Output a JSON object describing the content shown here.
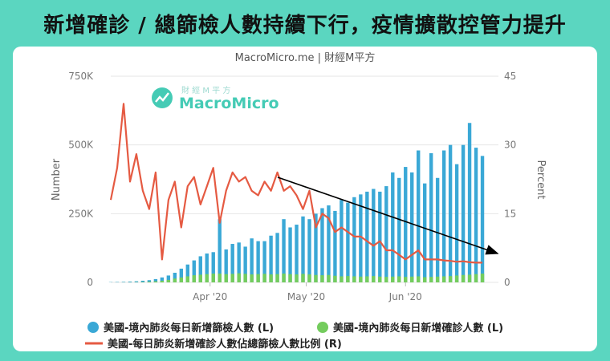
{
  "headline": "新增確診 / 總篩檢人數持續下行，疫情擴散控管力提升",
  "source": "MacroMicro.me | 財經M平方",
  "watermark": {
    "brand": "MacroMicro",
    "tagline": "財 經 M 平 方"
  },
  "colors": {
    "tests": "#3aa8d6",
    "cases": "#74cc5d",
    "ratio": "#e55a42",
    "trend": "#000000",
    "frame": "#5bd6c0",
    "brand": "#3cc9b2"
  },
  "chart_data": {
    "type": "bar",
    "title": "",
    "xlabel": "",
    "ylabel": "Number",
    "y2label": "Percent",
    "ylim": [
      0,
      750000
    ],
    "y2lim": [
      0,
      45
    ],
    "y_ticks": [
      "0",
      "250K",
      "500K",
      "750K"
    ],
    "y2_ticks": [
      "0",
      "15",
      "30",
      "45"
    ],
    "x_ticks": [
      "Apr '20",
      "May '20",
      "Jun '20"
    ],
    "grid": true,
    "legend_position": "bottom",
    "annotation": "downward trend arrow over the ratio line from mid-April to late June",
    "x": [
      "2020-03-01",
      "2020-03-03",
      "2020-03-05",
      "2020-03-07",
      "2020-03-09",
      "2020-03-11",
      "2020-03-13",
      "2020-03-15",
      "2020-03-17",
      "2020-03-19",
      "2020-03-21",
      "2020-03-23",
      "2020-03-25",
      "2020-03-27",
      "2020-03-29",
      "2020-03-31",
      "2020-04-02",
      "2020-04-04",
      "2020-04-06",
      "2020-04-08",
      "2020-04-10",
      "2020-04-12",
      "2020-04-14",
      "2020-04-16",
      "2020-04-18",
      "2020-04-20",
      "2020-04-22",
      "2020-04-24",
      "2020-04-26",
      "2020-04-28",
      "2020-04-30",
      "2020-05-02",
      "2020-05-04",
      "2020-05-06",
      "2020-05-08",
      "2020-05-10",
      "2020-05-12",
      "2020-05-14",
      "2020-05-16",
      "2020-05-18",
      "2020-05-20",
      "2020-05-22",
      "2020-05-24",
      "2020-05-26",
      "2020-05-28",
      "2020-05-30",
      "2020-06-01",
      "2020-06-03",
      "2020-06-05",
      "2020-06-07",
      "2020-06-09",
      "2020-06-11",
      "2020-06-13",
      "2020-06-15",
      "2020-06-17",
      "2020-06-19",
      "2020-06-21",
      "2020-06-23",
      "2020-06-25"
    ],
    "series": [
      {
        "name": "美國-境內肺炎每日新增篩檢人數 (L)",
        "axis": "left",
        "type": "bar",
        "values": [
          1000,
          1500,
          2000,
          3000,
          4000,
          6000,
          8000,
          12000,
          18000,
          25000,
          35000,
          50000,
          65000,
          80000,
          95000,
          105000,
          110000,
          230000,
          120000,
          140000,
          145000,
          130000,
          160000,
          150000,
          150000,
          170000,
          180000,
          230000,
          200000,
          210000,
          240000,
          230000,
          250000,
          270000,
          280000,
          260000,
          300000,
          290000,
          310000,
          320000,
          330000,
          340000,
          330000,
          350000,
          400000,
          380000,
          420000,
          400000,
          480000,
          360000,
          470000,
          380000,
          480000,
          500000,
          430000,
          500000,
          580000,
          490000,
          460000
        ]
      },
      {
        "name": "美國-境內肺炎每日新增確診人數 (L)",
        "axis": "left",
        "type": "bar",
        "values": [
          100,
          150,
          300,
          500,
          800,
          1500,
          2500,
          4000,
          6000,
          9000,
          14000,
          18000,
          22000,
          26000,
          28000,
          30000,
          32000,
          32000,
          30000,
          31000,
          33000,
          31000,
          29000,
          30000,
          31000,
          29000,
          30000,
          32000,
          30000,
          29000,
          31000,
          29000,
          27000,
          26000,
          27000,
          24000,
          22000,
          23000,
          22000,
          21000,
          22000,
          23000,
          21000,
          20000,
          21000,
          22000,
          20000,
          21000,
          22000,
          19000,
          20000,
          21000,
          22000,
          23000,
          25000,
          27000,
          28000,
          30000,
          32000
        ]
      },
      {
        "name": "美國-每日肺炎新增確診人數佔總篩檢人數比例 (R)",
        "axis": "right",
        "type": "line",
        "values": [
          18,
          25,
          39,
          22,
          28,
          20,
          16,
          24,
          5,
          18,
          22,
          12,
          21,
          23,
          17,
          21,
          25,
          13,
          20,
          24,
          22,
          23,
          20,
          19,
          22,
          20,
          24,
          20,
          21,
          19,
          16,
          20,
          12,
          15,
          14,
          11,
          12,
          11,
          10,
          10,
          9,
          8,
          9,
          7,
          7,
          6,
          5,
          6,
          7,
          5,
          5,
          5,
          4.8,
          4.7,
          4.5,
          4.6,
          4.4,
          4.3,
          4.3
        ]
      }
    ]
  }
}
